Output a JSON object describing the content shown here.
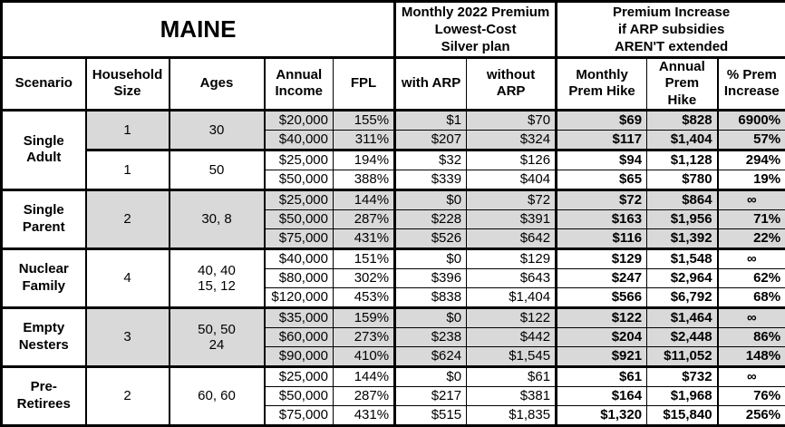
{
  "header": {
    "title": "MAINE",
    "premium_group_label": "Monthly 2022 Premium\nLowest-Cost\nSilver plan",
    "increase_group_label": "Premium Increase\nif ARP subsidies\nAREN'T extended",
    "col_labels": [
      "Scenario",
      "Household\nSize",
      "Ages",
      "Annual\nIncome",
      "FPL",
      "with ARP",
      "without ARP",
      "Monthly\nPrem Hike",
      "Annual\nPrem Hike",
      "% Prem\nIncrease"
    ]
  },
  "colors": {
    "shaded_row": "#d9d9d9",
    "border": "#000000",
    "background": "#ffffff"
  },
  "chart_data": {
    "type": "table",
    "title": "MAINE",
    "column_groups": [
      {
        "label": "Monthly 2022 Premium Lowest-Cost Silver plan",
        "columns": [
          "with ARP",
          "without ARP"
        ]
      },
      {
        "label": "Premium Increase if ARP subsidies AREN'T extended",
        "columns": [
          "Monthly Prem Hike",
          "Annual Prem Hike",
          "% Prem Increase"
        ]
      }
    ],
    "columns": [
      "Scenario",
      "Household Size",
      "Ages",
      "Annual Income",
      "FPL",
      "with ARP",
      "without ARP",
      "Monthly Prem Hike",
      "Annual Prem Hike",
      "% Prem Increase"
    ],
    "sections": [
      {
        "scenario": "Single Adult",
        "scenario_display": "Single\nAdult",
        "groups": [
          {
            "household_size": "1",
            "ages": "30",
            "shaded": true,
            "rows": [
              {
                "annual_income": "$20,000",
                "fpl": "155%",
                "with_arp": "$1",
                "without_arp": "$70",
                "monthly_hike": "$69",
                "annual_hike": "$828",
                "pct_increase": "6900%"
              },
              {
                "annual_income": "$40,000",
                "fpl": "311%",
                "with_arp": "$207",
                "without_arp": "$324",
                "monthly_hike": "$117",
                "annual_hike": "$1,404",
                "pct_increase": "57%"
              }
            ]
          },
          {
            "household_size": "1",
            "ages": "50",
            "shaded": false,
            "rows": [
              {
                "annual_income": "$25,000",
                "fpl": "194%",
                "with_arp": "$32",
                "without_arp": "$126",
                "monthly_hike": "$94",
                "annual_hike": "$1,128",
                "pct_increase": "294%"
              },
              {
                "annual_income": "$50,000",
                "fpl": "388%",
                "with_arp": "$339",
                "without_arp": "$404",
                "monthly_hike": "$65",
                "annual_hike": "$780",
                "pct_increase": "19%"
              }
            ]
          }
        ]
      },
      {
        "scenario": "Single Parent",
        "scenario_display": "Single\nParent",
        "groups": [
          {
            "household_size": "2",
            "ages": "30, 8",
            "shaded": true,
            "rows": [
              {
                "annual_income": "$25,000",
                "fpl": "144%",
                "with_arp": "$0",
                "without_arp": "$72",
                "monthly_hike": "$72",
                "annual_hike": "$864",
                "pct_increase": "∞"
              },
              {
                "annual_income": "$50,000",
                "fpl": "287%",
                "with_arp": "$228",
                "without_arp": "$391",
                "monthly_hike": "$163",
                "annual_hike": "$1,956",
                "pct_increase": "71%"
              },
              {
                "annual_income": "$75,000",
                "fpl": "431%",
                "with_arp": "$526",
                "without_arp": "$642",
                "monthly_hike": "$116",
                "annual_hike": "$1,392",
                "pct_increase": "22%"
              }
            ]
          }
        ]
      },
      {
        "scenario": "Nuclear Family",
        "scenario_display": "Nuclear\nFamily",
        "groups": [
          {
            "household_size": "4",
            "ages": "40, 40\n15, 12",
            "shaded": false,
            "rows": [
              {
                "annual_income": "$40,000",
                "fpl": "151%",
                "with_arp": "$0",
                "without_arp": "$129",
                "monthly_hike": "$129",
                "annual_hike": "$1,548",
                "pct_increase": "∞"
              },
              {
                "annual_income": "$80,000",
                "fpl": "302%",
                "with_arp": "$396",
                "without_arp": "$643",
                "monthly_hike": "$247",
                "annual_hike": "$2,964",
                "pct_increase": "62%"
              },
              {
                "annual_income": "$120,000",
                "fpl": "453%",
                "with_arp": "$838",
                "without_arp": "$1,404",
                "monthly_hike": "$566",
                "annual_hike": "$6,792",
                "pct_increase": "68%"
              }
            ]
          }
        ]
      },
      {
        "scenario": "Empty Nesters",
        "scenario_display": "Empty\nNesters",
        "groups": [
          {
            "household_size": "3",
            "ages": "50, 50\n24",
            "shaded": true,
            "rows": [
              {
                "annual_income": "$35,000",
                "fpl": "159%",
                "with_arp": "$0",
                "without_arp": "$122",
                "monthly_hike": "$122",
                "annual_hike": "$1,464",
                "pct_increase": "∞"
              },
              {
                "annual_income": "$60,000",
                "fpl": "273%",
                "with_arp": "$238",
                "without_arp": "$442",
                "monthly_hike": "$204",
                "annual_hike": "$2,448",
                "pct_increase": "86%"
              },
              {
                "annual_income": "$90,000",
                "fpl": "410%",
                "with_arp": "$624",
                "without_arp": "$1,545",
                "monthly_hike": "$921",
                "annual_hike": "$11,052",
                "pct_increase": "148%"
              }
            ]
          }
        ]
      },
      {
        "scenario": "Pre-Retirees",
        "scenario_display": "Pre-\nRetirees",
        "groups": [
          {
            "household_size": "2",
            "ages": "60, 60",
            "shaded": false,
            "rows": [
              {
                "annual_income": "$25,000",
                "fpl": "144%",
                "with_arp": "$0",
                "without_arp": "$61",
                "monthly_hike": "$61",
                "annual_hike": "$732",
                "pct_increase": "∞"
              },
              {
                "annual_income": "$50,000",
                "fpl": "287%",
                "with_arp": "$217",
                "without_arp": "$381",
                "monthly_hike": "$164",
                "annual_hike": "$1,968",
                "pct_increase": "76%"
              },
              {
                "annual_income": "$75,000",
                "fpl": "431%",
                "with_arp": "$515",
                "without_arp": "$1,835",
                "monthly_hike": "$1,320",
                "annual_hike": "$15,840",
                "pct_increase": "256%"
              }
            ]
          }
        ]
      }
    ]
  }
}
